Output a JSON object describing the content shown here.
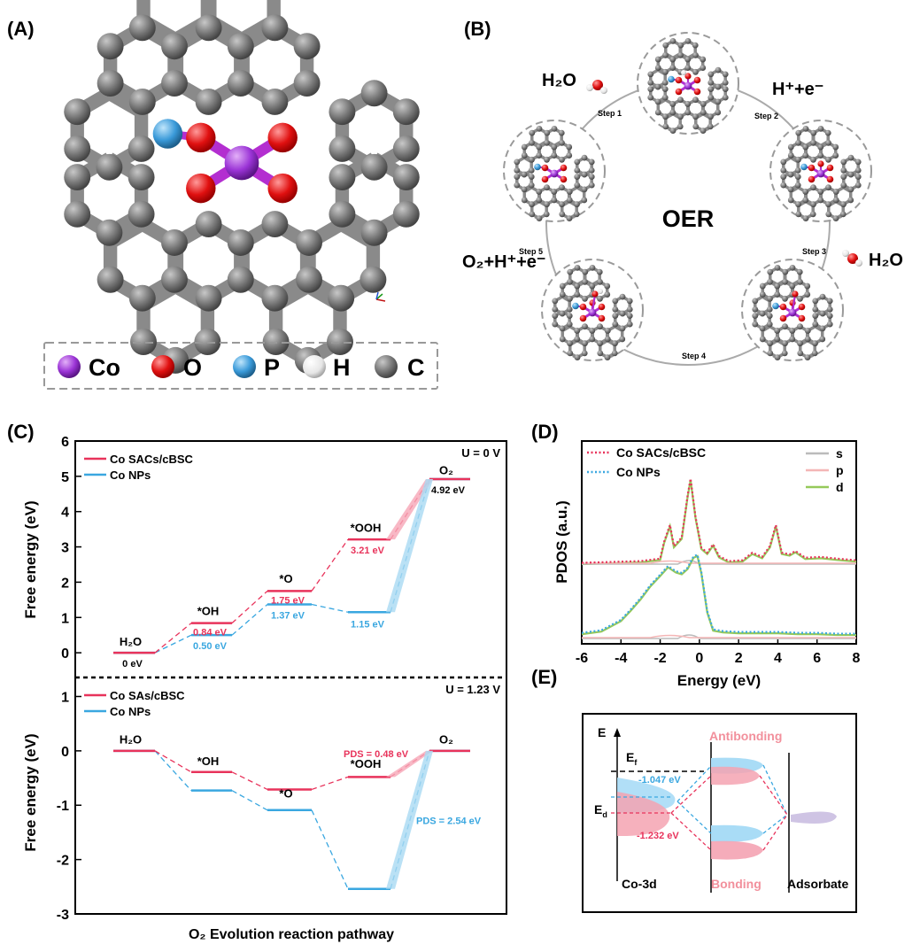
{
  "panels": {
    "A": "(A)",
    "B": "(B)",
    "C": "(C)",
    "D": "(D)",
    "E": "(E)"
  },
  "legend_atoms": [
    {
      "symbol": "Co",
      "color": "#9b34d6"
    },
    {
      "symbol": "O",
      "color": "#e01010"
    },
    {
      "symbol": "P",
      "color": "#3a9ad9"
    },
    {
      "symbol": "H",
      "color": "#f0f0f0"
    },
    {
      "symbol": "C",
      "color": "#555555"
    }
  ],
  "cycle": {
    "center": "OER",
    "steps": [
      "Step 1",
      "Step 2",
      "Step 3",
      "Step 4",
      "Step 5"
    ],
    "labels": {
      "h2o_in_1": "H₂O",
      "proton_out": "H⁺+e⁻",
      "h2o_in_2": "H₂O",
      "o2_out": "O₂+H⁺+e⁻"
    }
  },
  "colors": {
    "sac": "#e8335b",
    "np": "#3aa7e0",
    "sac_band": "#f6a6b6",
    "np_band": "#a9d9f3",
    "s": "#bbbbbb",
    "p": "#f4b6b6",
    "d": "#95c95a",
    "antibonding": "#f2909c",
    "adsorbate": "#cfc4e4"
  },
  "chart_data": [
    {
      "id": "C-top",
      "type": "line",
      "title": "",
      "condition": "U = 0 V",
      "xlabel": "",
      "ylabel": "Free energy (eV)",
      "ylim": [
        -0.7,
        6
      ],
      "yticks": [
        0,
        1,
        2,
        3,
        4,
        5,
        6
      ],
      "steps": [
        "H₂O",
        "*OH",
        "*O",
        "*OOH",
        "O₂"
      ],
      "series": [
        {
          "name": "Co SACs/cBSC",
          "values": [
            0,
            0.84,
            1.75,
            3.21,
            4.92
          ],
          "labels": [
            "0 eV",
            "0.84 eV",
            "1.75 eV",
            "3.21 eV",
            "4.92 eV"
          ]
        },
        {
          "name": "Co NPs",
          "values": [
            0,
            0.5,
            1.37,
            1.15,
            4.92
          ],
          "labels": [
            "",
            "0.50 eV",
            "1.37 eV",
            "1.15 eV",
            ""
          ]
        }
      ]
    },
    {
      "id": "C-bottom",
      "type": "line",
      "title": "",
      "condition": "U = 1.23 V",
      "xlabel": "O₂ Evolution reaction pathway",
      "ylabel": "Free energy (eV)",
      "ylim": [
        -3,
        1.35
      ],
      "yticks": [
        1,
        0,
        -1,
        -2,
        -3
      ],
      "steps": [
        "H₂O",
        "*OH",
        "*O",
        "*OOH",
        "O₂"
      ],
      "series": [
        {
          "name": "Co SAs/cBSC",
          "values": [
            0,
            -0.39,
            -0.71,
            -0.48,
            0
          ]
        },
        {
          "name": "Co NPs",
          "values": [
            0,
            -0.73,
            -1.09,
            -2.54,
            0
          ]
        }
      ],
      "annotations": {
        "sac_pds": "PDS = 0.48 eV",
        "np_pds": "PDS = 2.54 eV"
      }
    },
    {
      "id": "D",
      "type": "line",
      "title": "",
      "xlabel": "Energy (eV)",
      "ylabel": "PDOS (a.u.)",
      "xlim": [
        -6,
        8
      ],
      "xticks": [
        -6,
        -4,
        -2,
        0,
        2,
        4,
        6,
        8
      ],
      "series": [
        {
          "name": "Co SACs/cBSC",
          "offset": 1.0,
          "x": [
            -6,
            -3,
            -2,
            -1.8,
            -1.5,
            -1.3,
            -0.9,
            -0.6,
            -0.45,
            -0.2,
            0.1,
            0.4,
            0.7,
            1.0,
            1.5,
            2.2,
            2.7,
            3.2,
            3.6,
            3.9,
            4.2,
            4.6,
            4.9,
            5.4,
            6.2,
            7,
            8
          ],
          "y": [
            0,
            0.02,
            0.05,
            0.25,
            0.45,
            0.2,
            0.3,
            0.8,
            1.0,
            0.55,
            0.18,
            0.12,
            0.22,
            0.08,
            0.02,
            0.03,
            0.12,
            0.07,
            0.2,
            0.45,
            0.12,
            0.1,
            0.14,
            0.06,
            0.07,
            0.05,
            0.03
          ]
        },
        {
          "name": "Co NPs",
          "offset": 0.0,
          "x": [
            -6,
            -5,
            -4,
            -3.5,
            -3,
            -2.5,
            -2,
            -1.6,
            -1.2,
            -0.9,
            -0.6,
            -0.3,
            -0.1,
            0.1,
            0.4,
            0.7,
            1.2,
            2,
            3,
            4,
            5,
            6,
            7,
            8
          ],
          "y": [
            0.05,
            0.08,
            0.2,
            0.32,
            0.45,
            0.6,
            0.72,
            0.82,
            0.76,
            0.74,
            0.8,
            0.93,
            0.95,
            0.75,
            0.3,
            0.09,
            0.07,
            0.06,
            0.06,
            0.06,
            0.05,
            0.05,
            0.04,
            0.04
          ]
        }
      ],
      "orbital_legend": [
        "s",
        "p",
        "d"
      ]
    },
    {
      "id": "E",
      "type": "diagram",
      "title": "",
      "labels": {
        "axis": "E",
        "ef": "E",
        "ef_sub": "f",
        "ed": "E",
        "ed_sub": "d",
        "e_np": "-1.047 eV",
        "e_sac": "-1.232 eV",
        "antibonding": "Antibonding",
        "bonding": "Bonding",
        "left": "Co-3d",
        "right": "Adsorbate"
      }
    }
  ]
}
